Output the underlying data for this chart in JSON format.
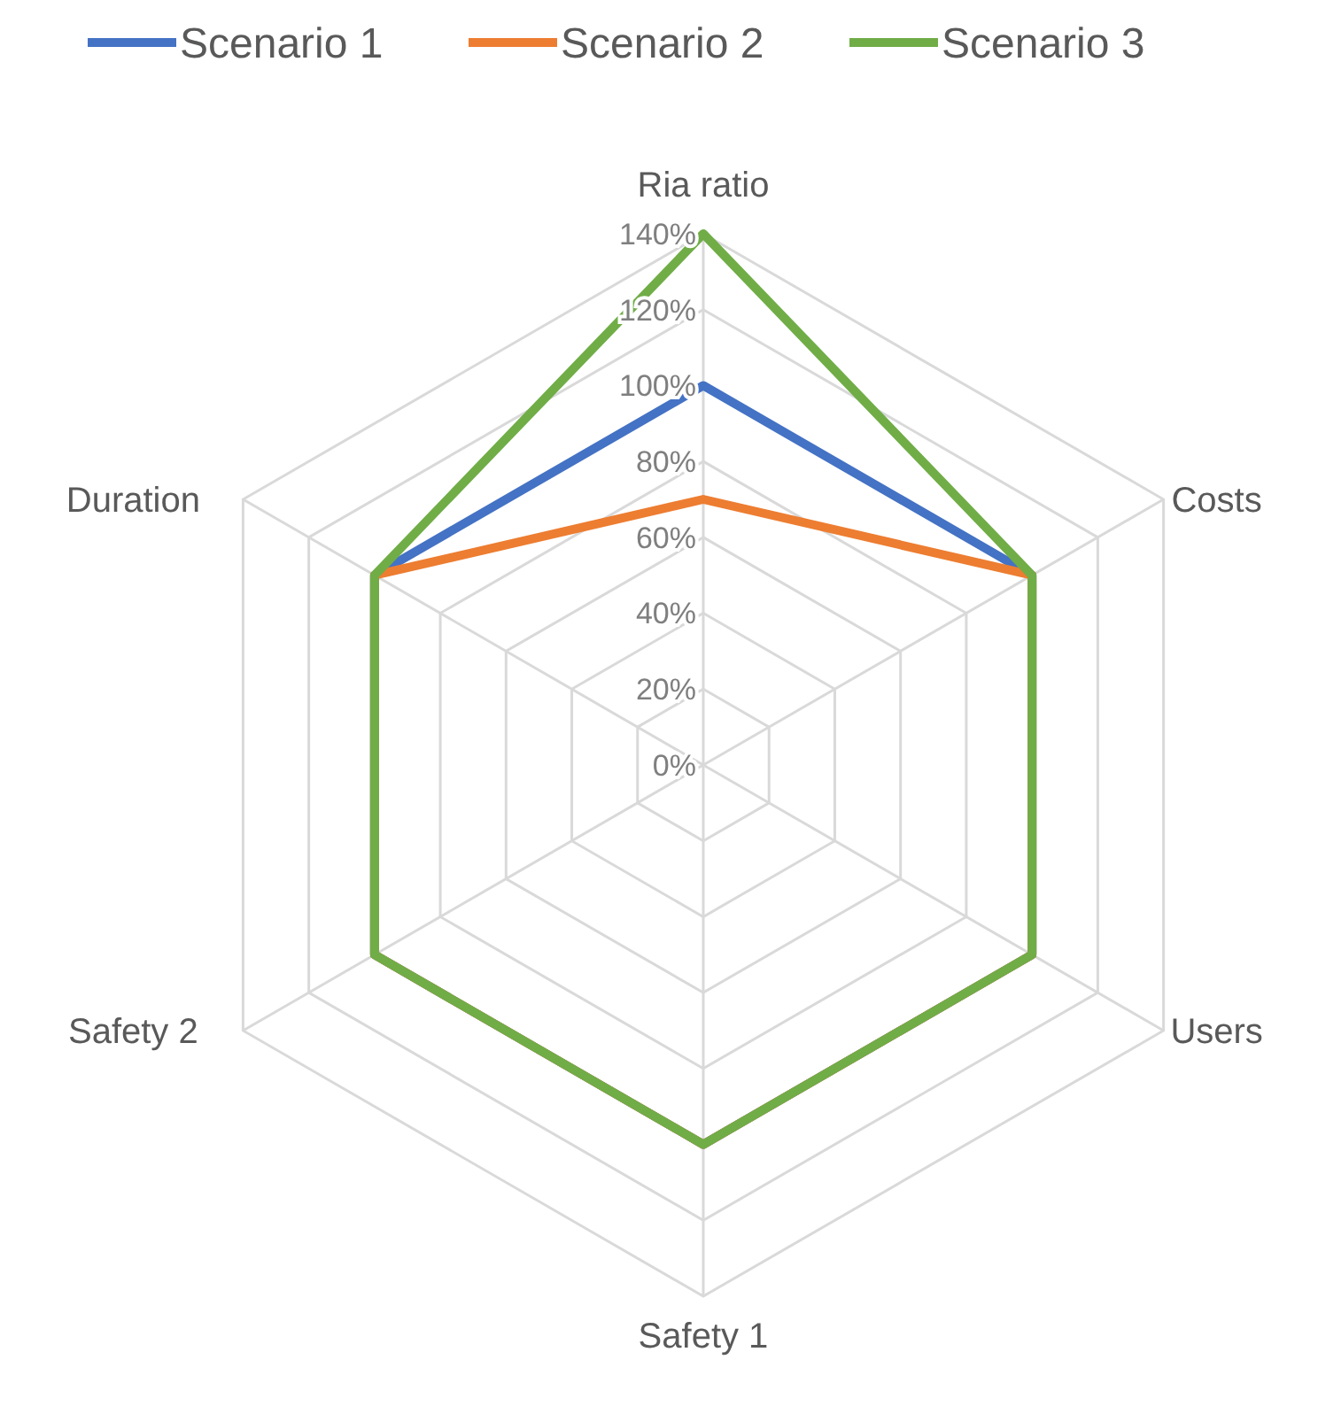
{
  "chart_data": {
    "type": "radar",
    "categories": [
      "Ria ratio",
      "Costs",
      "Users",
      "Safety 1",
      "Safety 2",
      "Duration"
    ],
    "series": [
      {
        "name": "Scenario 1",
        "color": "#4472c4",
        "values": [
          100,
          100,
          100,
          100,
          100,
          100
        ]
      },
      {
        "name": "Scenario 2",
        "color": "#ed7d31",
        "values": [
          70,
          100,
          100,
          100,
          100,
          100
        ]
      },
      {
        "name": "Scenario 3",
        "color": "#70ad47",
        "values": [
          140,
          100,
          100,
          100,
          100,
          100
        ]
      }
    ],
    "ylim": [
      0,
      140
    ],
    "yticks": [
      {
        "value": 0,
        "label": "0%"
      },
      {
        "value": 20,
        "label": "20%"
      },
      {
        "value": 40,
        "label": "40%"
      },
      {
        "value": 60,
        "label": "60%"
      },
      {
        "value": 80,
        "label": "80%"
      },
      {
        "value": 100,
        "label": "100%"
      },
      {
        "value": 120,
        "label": "120%"
      },
      {
        "value": 140,
        "label": "140%"
      }
    ],
    "grid": true,
    "legend": "top"
  }
}
